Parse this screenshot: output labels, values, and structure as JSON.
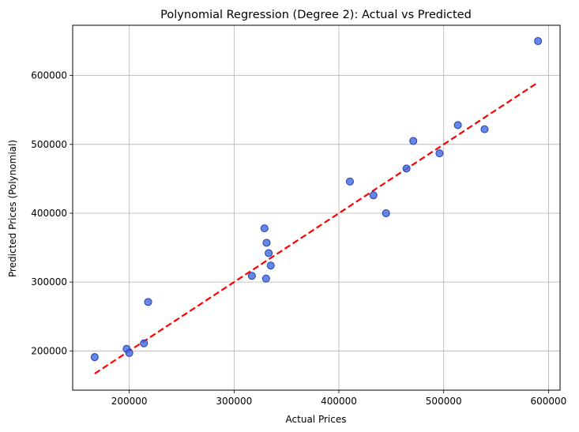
{
  "chart_data": {
    "type": "scatter",
    "title": "Polynomial Regression (Degree 2): Actual vs Predicted",
    "xlabel": "Actual Prices",
    "ylabel": "Predicted Prices (Polynomial)",
    "xlim": [
      146000,
      611000
    ],
    "ylim": [
      143000,
      673000
    ],
    "xticks": [
      200000,
      300000,
      400000,
      500000,
      600000
    ],
    "yticks": [
      200000,
      300000,
      400000,
      500000,
      600000
    ],
    "xtick_labels": [
      "200000",
      "300000",
      "400000",
      "500000",
      "600000"
    ],
    "ytick_labels": [
      "200000",
      "300000",
      "400000",
      "500000",
      "600000"
    ],
    "grid": true,
    "series": [
      {
        "marker": "circle",
        "color": "#4169e1",
        "edgecolor": "#1f3fb0",
        "points": [
          {
            "x": 167000,
            "y": 191000
          },
          {
            "x": 197500,
            "y": 203000
          },
          {
            "x": 200000,
            "y": 197000
          },
          {
            "x": 214000,
            "y": 211000
          },
          {
            "x": 218000,
            "y": 271000
          },
          {
            "x": 317000,
            "y": 309000
          },
          {
            "x": 329000,
            "y": 378000
          },
          {
            "x": 330500,
            "y": 305000
          },
          {
            "x": 331000,
            "y": 357000
          },
          {
            "x": 333000,
            "y": 342000
          },
          {
            "x": 335000,
            "y": 324000
          },
          {
            "x": 410500,
            "y": 446000
          },
          {
            "x": 433000,
            "y": 426000
          },
          {
            "x": 445000,
            "y": 400000
          },
          {
            "x": 464500,
            "y": 465000
          },
          {
            "x": 471000,
            "y": 505000
          },
          {
            "x": 496000,
            "y": 487000
          },
          {
            "x": 513500,
            "y": 528000
          },
          {
            "x": 539000,
            "y": 522000
          },
          {
            "x": 590000,
            "y": 650000
          }
        ]
      }
    ],
    "reference_line": {
      "style": "dashed",
      "color": "#ff0000",
      "from": {
        "x": 167000,
        "y": 167000
      },
      "to": {
        "x": 590000,
        "y": 590000
      }
    }
  }
}
